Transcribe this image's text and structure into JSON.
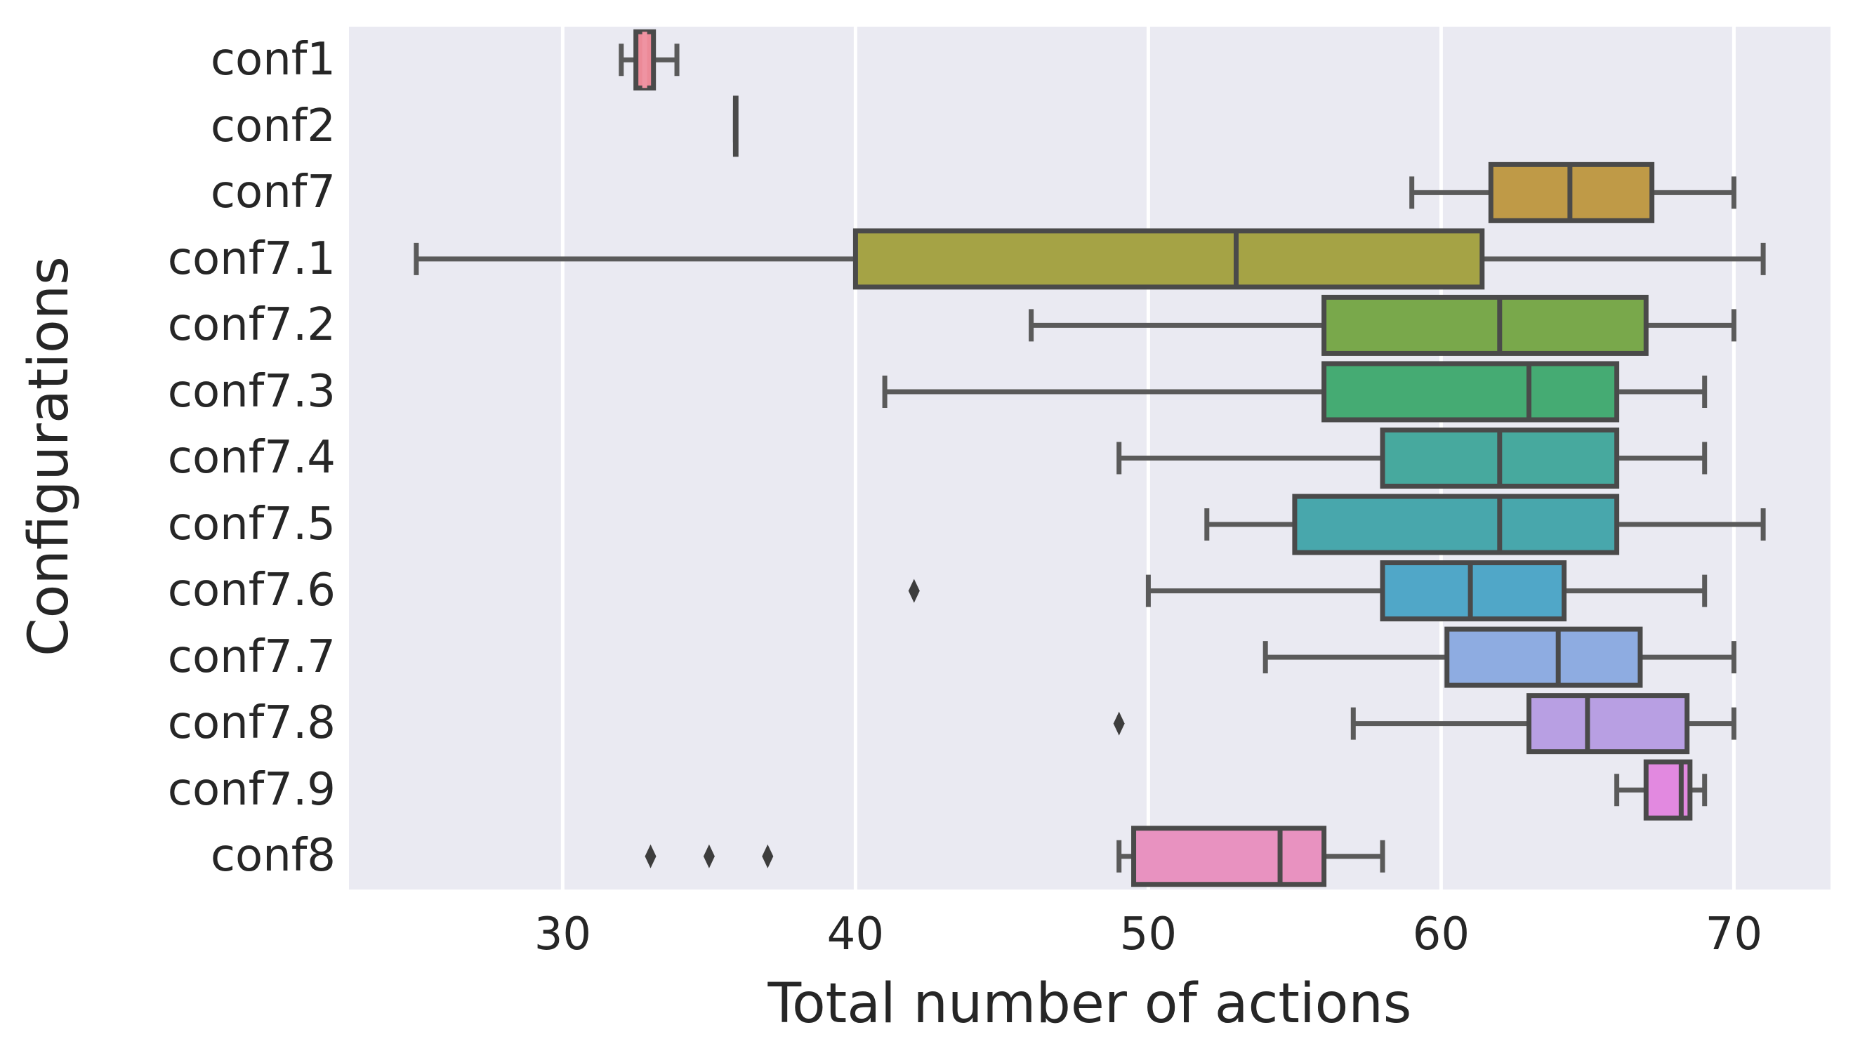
{
  "figure": {
    "background": "#ffffff",
    "plot_background": "#eaeaf2",
    "grid_color": "#ffffff",
    "box_edge_color": "#4a4a4a",
    "whisker_color": "#5a5a5a",
    "outlier_color": "#3d3d3d",
    "text_color": "#262626"
  },
  "chart_data": {
    "type": "boxplot-horizontal",
    "title": "",
    "xlabel": "Total number of actions",
    "ylabel": "Configurations",
    "xlim": [
      22.7,
      73.3
    ],
    "xticks": [
      30,
      40,
      50,
      60,
      70
    ],
    "xtick_labels": [
      "30",
      "40",
      "50",
      "60",
      "70"
    ],
    "grid": "vertical-white-lines",
    "legend": "none",
    "categories": [
      "conf1",
      "conf2",
      "conf7",
      "conf7.1",
      "conf7.2",
      "conf7.3",
      "conf7.4",
      "conf7.5",
      "conf7.6",
      "conf7.7",
      "conf7.8",
      "conf7.9",
      "conf8"
    ],
    "series": [
      {
        "name": "conf1",
        "whislo": 32,
        "q1": 32.5,
        "med": 32.8,
        "q3": 33.1,
        "whishi": 33.9,
        "outliers": [],
        "color": "#ec8a98",
        "median_color": "#ef93a2"
      },
      {
        "name": "conf2",
        "whislo": 35.9,
        "q1": 35.9,
        "med": 35.9,
        "q3": 35.9,
        "whishi": 35.9,
        "outliers": [],
        "color": "#555555"
      },
      {
        "name": "conf7",
        "whislo": 59,
        "q1": 61.7,
        "med": 64.4,
        "q3": 67.2,
        "whishi": 70,
        "outliers": [],
        "color": "#bf9a47"
      },
      {
        "name": "conf7.1",
        "whislo": 25,
        "q1": 40,
        "med": 53,
        "q3": 61.4,
        "whishi": 71,
        "outliers": [],
        "color": "#a5a345"
      },
      {
        "name": "conf7.2",
        "whislo": 46,
        "q1": 56,
        "med": 62,
        "q3": 67,
        "whishi": 70,
        "outliers": [],
        "color": "#79a84b"
      },
      {
        "name": "conf7.3",
        "whislo": 41,
        "q1": 56,
        "med": 63,
        "q3": 66,
        "whishi": 69,
        "outliers": [],
        "color": "#45ab73"
      },
      {
        "name": "conf7.4",
        "whislo": 49,
        "q1": 58,
        "med": 62,
        "q3": 66,
        "whishi": 69,
        "outliers": [],
        "color": "#47a99e"
      },
      {
        "name": "conf7.5",
        "whislo": 52,
        "q1": 55,
        "med": 62,
        "q3": 66,
        "whishi": 71,
        "outliers": [],
        "color": "#48a7ac"
      },
      {
        "name": "conf7.6",
        "whislo": 50,
        "q1": 58,
        "med": 61,
        "q3": 64.2,
        "whishi": 69,
        "outliers": [
          42
        ],
        "color": "#50a7c8"
      },
      {
        "name": "conf7.7",
        "whislo": 54,
        "q1": 60.2,
        "med": 64,
        "q3": 66.8,
        "whishi": 70,
        "outliers": [],
        "color": "#8eace1"
      },
      {
        "name": "conf7.8",
        "whislo": 57,
        "q1": 63,
        "med": 65,
        "q3": 68.4,
        "whishi": 70,
        "outliers": [
          49
        ],
        "color": "#b89fe3"
      },
      {
        "name": "conf7.9",
        "whislo": 66,
        "q1": 67,
        "med": 68.2,
        "q3": 68.5,
        "whishi": 69,
        "outliers": [],
        "color": "#e289e0"
      },
      {
        "name": "conf8",
        "whislo": 49,
        "q1": 49.5,
        "med": 54.5,
        "q3": 56,
        "whishi": 58,
        "outliers": [
          33,
          35,
          37
        ],
        "color": "#e892c0"
      }
    ]
  }
}
